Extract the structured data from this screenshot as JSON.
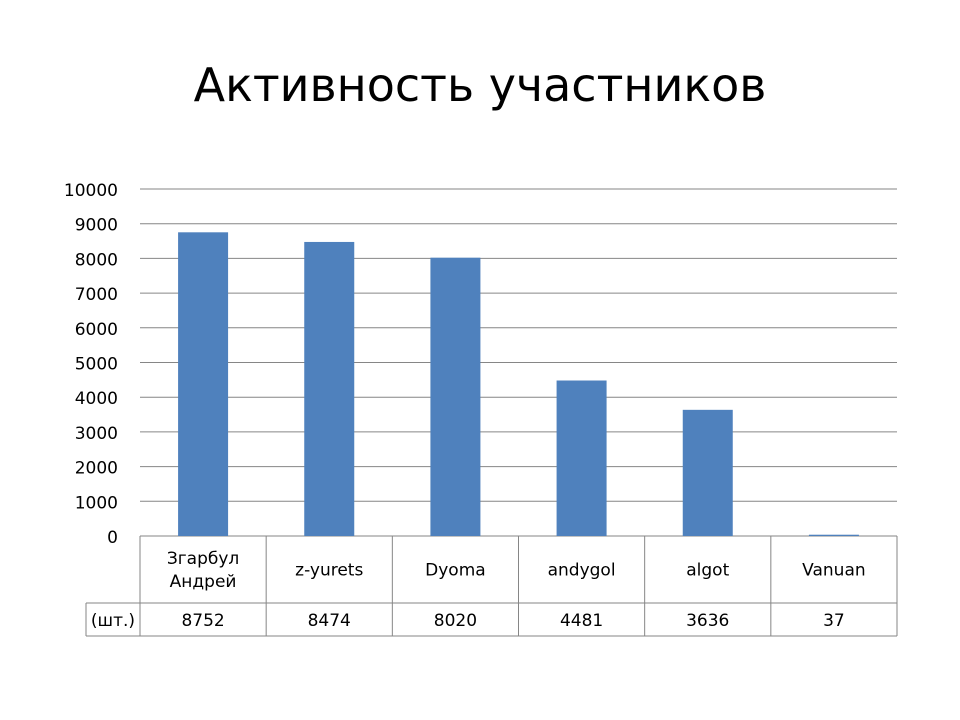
{
  "title": "Активность участников",
  "colors": {
    "bar": "#4f81bd",
    "grid": "#868686",
    "table_border": "#868686"
  },
  "chart_data": {
    "type": "bar",
    "title": "Активность участников",
    "categories": [
      [
        "Згарбул",
        "Андрей"
      ],
      [
        "z-yurets"
      ],
      [
        "Dyoma"
      ],
      [
        "andygol"
      ],
      [
        "algot"
      ],
      [
        "Vanuan"
      ]
    ],
    "values": [
      8752,
      8474,
      8020,
      4481,
      3636,
      37
    ],
    "series": [
      {
        "name": "(шт.)",
        "values": [
          8752,
          8474,
          8020,
          4481,
          3636,
          37
        ]
      }
    ],
    "y_ticks": [
      0,
      1000,
      2000,
      3000,
      4000,
      5000,
      6000,
      7000,
      8000,
      9000,
      10000
    ],
    "ylim": [
      0,
      10000
    ],
    "grid": true,
    "legend": "data-table"
  }
}
